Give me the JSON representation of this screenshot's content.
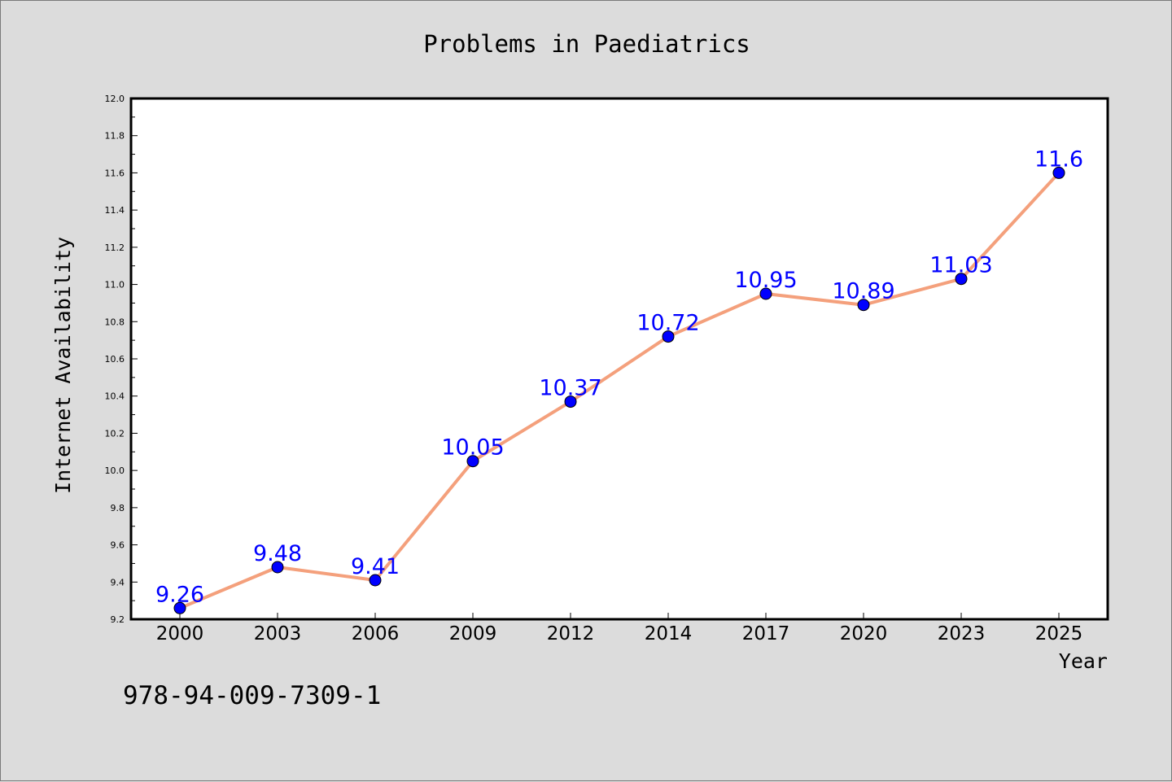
{
  "chart_data": {
    "type": "line",
    "title": "Problems in Paediatrics",
    "xlabel": "Year",
    "ylabel": "Internet Availability",
    "categories": [
      "2000",
      "2003",
      "2006",
      "2009",
      "2012",
      "2014",
      "2017",
      "2020",
      "2023",
      "2025"
    ],
    "series": [
      {
        "values": [
          9.26,
          9.48,
          9.41,
          10.05,
          10.37,
          10.72,
          10.95,
          10.89,
          11.03,
          11.6
        ],
        "labels": [
          "9.26",
          "9.48",
          "9.41",
          "10.05",
          "10.37",
          "10.72",
          "10.95",
          "10.89",
          "11.03",
          "11.6"
        ],
        "line_color": "#f4a07c",
        "marker_color": "#0000ff"
      }
    ],
    "ylim": [
      9.2,
      12.0
    ],
    "yticks": [
      "9.2",
      "9.4",
      "9.6",
      "9.8",
      "10.0",
      "10.2",
      "10.4",
      "10.6",
      "10.8",
      "11.0",
      "11.2",
      "11.4",
      "11.6",
      "11.8",
      "12.0"
    ],
    "grid": false,
    "background_color": "#dcdcdc",
    "plot_background_color": "#ffffff"
  },
  "annotation": {
    "isbn": "978-94-009-7309-1"
  }
}
